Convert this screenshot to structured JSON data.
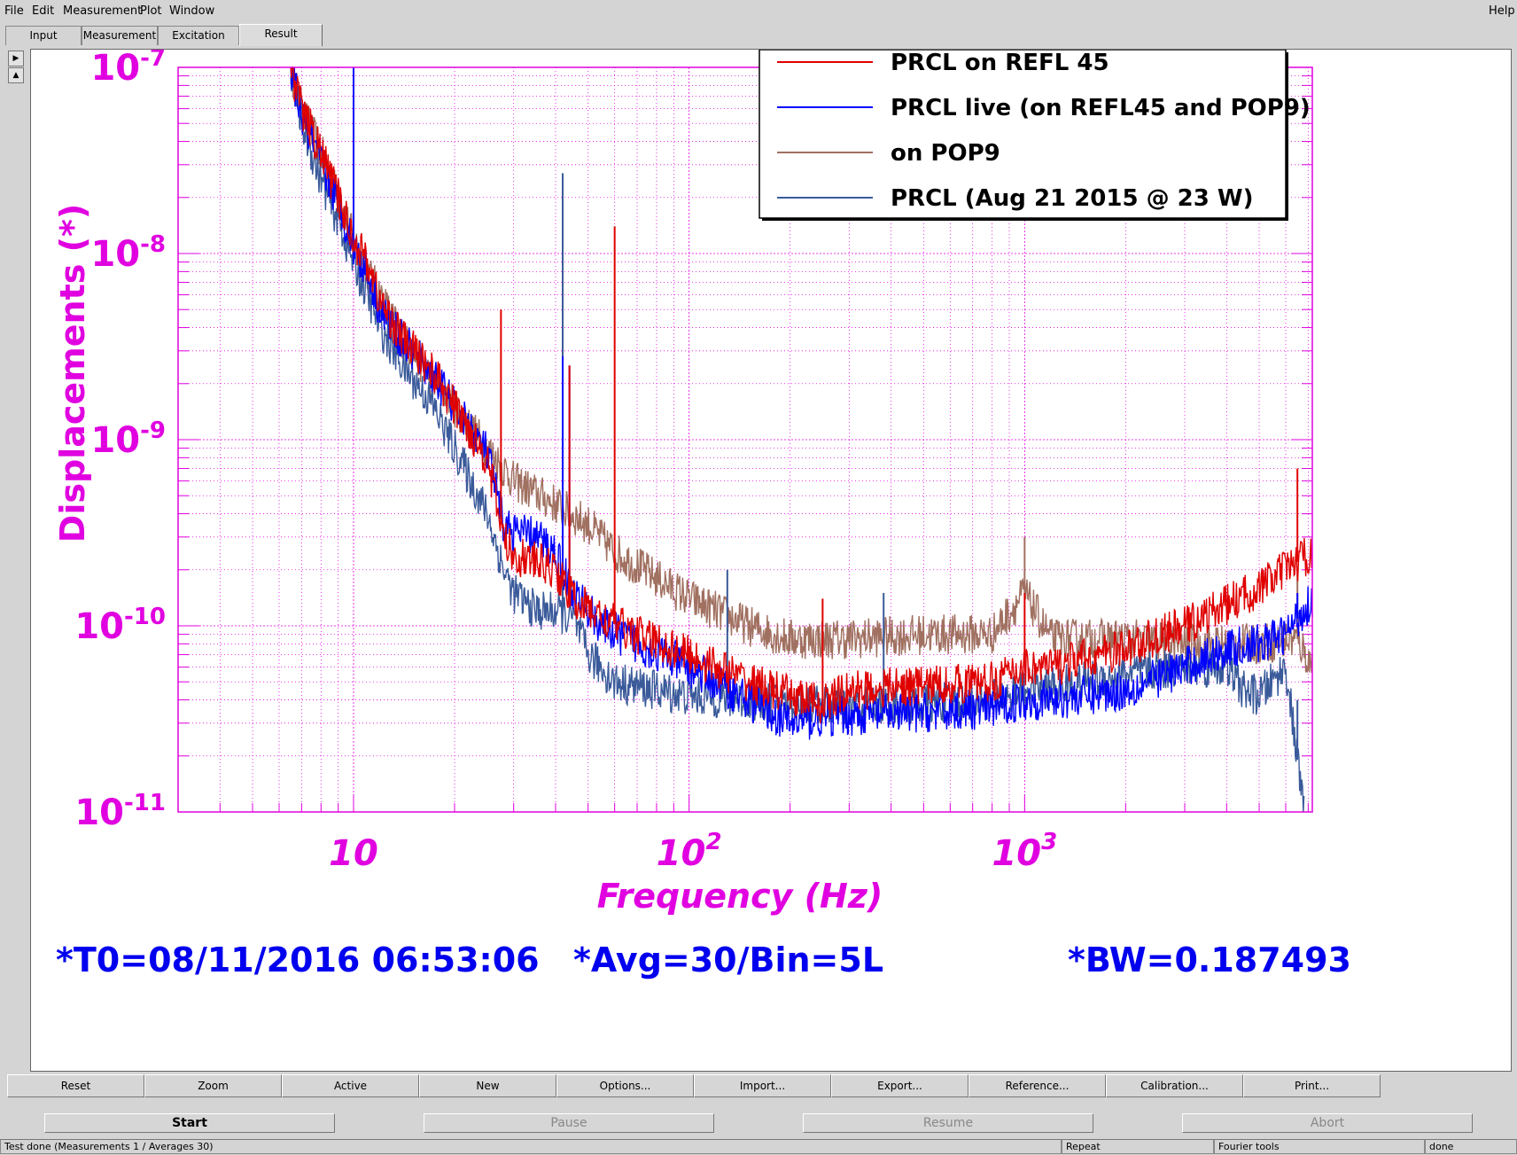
{
  "menu": {
    "file": "File",
    "edit": "Edit",
    "measurement": "Measurement",
    "plot": "Plot",
    "window": "Window",
    "help": "Help"
  },
  "tabs": [
    "Input",
    "Measurement",
    "Excitation",
    "Result"
  ],
  "active_tab": "Result",
  "icons": {
    "scroll_up": "triangle-right-icon",
    "scroll_down": "triangle-up-icon"
  },
  "colors": {
    "magenta": "#e000e0",
    "blue_text": "#0000ee",
    "red": "#e00000",
    "blue": "#0000ff",
    "brown": "#a07060",
    "slate": "#3a5a9a"
  },
  "plot_info": {
    "t0": "*T0=08/11/2016 06:53:06",
    "avg": "*Avg=30/Bin=5L",
    "bw": "*BW=0.187493"
  },
  "chart_data": {
    "type": "line",
    "xlabel": "Frequency (Hz)",
    "ylabel": "Displacements (*)",
    "xscale": "log",
    "yscale": "log",
    "xlim": [
      3,
      7200
    ],
    "ylim": [
      1e-11,
      1e-07
    ],
    "x_tick_labels": [
      "10",
      "10^2",
      "10^3"
    ],
    "y_tick_labels": [
      "10^-7",
      "10^-8",
      "10^-9",
      "10^-10",
      "10^-11"
    ],
    "grid": true,
    "legend_position": "top-right",
    "series": [
      {
        "name": "PRCL on REFL 45",
        "color": "#e00000",
        "points": [
          [
            6.5,
            1e-07
          ],
          [
            7,
            6e-08
          ],
          [
            8,
            3.5e-08
          ],
          [
            9,
            2e-08
          ],
          [
            10,
            1.2e-08
          ],
          [
            11,
            9e-09
          ],
          [
            12,
            5.5e-09
          ],
          [
            14,
            3.5e-09
          ],
          [
            17,
            2.4e-09
          ],
          [
            20,
            1.5e-09
          ],
          [
            25,
            8e-10
          ],
          [
            28,
            3e-10
          ],
          [
            30,
            2.4e-10
          ],
          [
            35,
            2.2e-10
          ],
          [
            40,
            2e-10
          ],
          [
            45,
            1.4e-10
          ],
          [
            55,
            1.1e-10
          ],
          [
            70,
            9e-11
          ],
          [
            100,
            7e-11
          ],
          [
            150,
            5e-11
          ],
          [
            200,
            4.2e-11
          ],
          [
            250,
            3.8e-11
          ],
          [
            300,
            4.5e-11
          ],
          [
            500,
            4.8e-11
          ],
          [
            800,
            5e-11
          ],
          [
            1000,
            6e-11
          ],
          [
            1200,
            6e-11
          ],
          [
            2000,
            7.5e-11
          ],
          [
            3000,
            1e-10
          ],
          [
            4000,
            1.3e-10
          ],
          [
            5000,
            1.6e-10
          ],
          [
            6000,
            2e-10
          ],
          [
            7200,
            2.5e-10
          ]
        ],
        "peaks": [
          [
            27.5,
            5e-09
          ],
          [
            44,
            2.5e-09
          ],
          [
            60,
            1.4e-08
          ],
          [
            250,
            1.4e-10
          ],
          [
            1000,
            1.5e-10
          ],
          [
            6500,
            7e-10
          ]
        ]
      },
      {
        "name": "PRCL live (on REFL45 and POP9)",
        "color": "#0000ff",
        "points": [
          [
            6.5,
            1e-07
          ],
          [
            7,
            5.5e-08
          ],
          [
            8,
            3e-08
          ],
          [
            9,
            1.9e-08
          ],
          [
            10,
            1.1e-08
          ],
          [
            11,
            8e-09
          ],
          [
            12,
            5e-09
          ],
          [
            14,
            3.4e-09
          ],
          [
            17,
            2.3e-09
          ],
          [
            20,
            1.5e-09
          ],
          [
            25,
            8.5e-10
          ],
          [
            28,
            3.5e-10
          ],
          [
            30,
            3.2e-10
          ],
          [
            35,
            3e-10
          ],
          [
            40,
            2.5e-10
          ],
          [
            45,
            1.5e-10
          ],
          [
            55,
            1e-10
          ],
          [
            70,
            8e-11
          ],
          [
            100,
            6e-11
          ],
          [
            150,
            4e-11
          ],
          [
            200,
            3e-11
          ],
          [
            250,
            3.2e-11
          ],
          [
            300,
            3.3e-11
          ],
          [
            500,
            3.4e-11
          ],
          [
            800,
            3.6e-11
          ],
          [
            1000,
            4e-11
          ],
          [
            1200,
            4e-11
          ],
          [
            2000,
            4.5e-11
          ],
          [
            3000,
            6e-11
          ],
          [
            4000,
            7.5e-11
          ],
          [
            5000,
            8e-11
          ],
          [
            6000,
            9e-11
          ],
          [
            7200,
            1.4e-10
          ]
        ],
        "peaks": [
          [
            10,
            1e-07
          ],
          [
            42,
            2.8e-09
          ],
          [
            44,
            2.5e-09
          ],
          [
            6500,
            1.5e-10
          ]
        ]
      },
      {
        "name": "on POP9",
        "color": "#a07060",
        "points": [
          [
            6.5,
            1e-07
          ],
          [
            7,
            6e-08
          ],
          [
            8,
            3.5e-08
          ],
          [
            9,
            2e-08
          ],
          [
            10,
            1.2e-08
          ],
          [
            11,
            8e-09
          ],
          [
            12,
            6e-09
          ],
          [
            14,
            3.5e-09
          ],
          [
            17,
            2.2e-09
          ],
          [
            20,
            1.5e-09
          ],
          [
            25,
            9e-10
          ],
          [
            30,
            6e-10
          ],
          [
            40,
            4.5e-10
          ],
          [
            50,
            3.5e-10
          ],
          [
            60,
            2.5e-10
          ],
          [
            80,
            1.8e-10
          ],
          [
            100,
            1.4e-10
          ],
          [
            150,
            1e-10
          ],
          [
            200,
            8.5e-11
          ],
          [
            300,
            8.5e-11
          ],
          [
            500,
            9e-11
          ],
          [
            800,
            9e-11
          ],
          [
            1000,
            1.5e-10
          ],
          [
            1200,
            8.5e-11
          ],
          [
            2000,
            8.5e-11
          ],
          [
            3000,
            8e-11
          ],
          [
            5000,
            8e-11
          ],
          [
            6500,
            8.5e-11
          ],
          [
            7200,
            6e-11
          ]
        ],
        "peaks": [
          [
            1000,
            3e-10
          ],
          [
            6500,
            2e-10
          ]
        ]
      },
      {
        "name": "PRCL (Aug 21 2015 @ 23 W)",
        "color": "#3a5a9a",
        "points": [
          [
            6.5,
            1e-07
          ],
          [
            7,
            5e-08
          ],
          [
            8,
            2.5e-08
          ],
          [
            9,
            1.5e-08
          ],
          [
            10,
            9e-09
          ],
          [
            11,
            6e-09
          ],
          [
            12,
            4e-09
          ],
          [
            14,
            2.5e-09
          ],
          [
            17,
            1.6e-09
          ],
          [
            20,
            9e-10
          ],
          [
            25,
            4e-10
          ],
          [
            28,
            2e-10
          ],
          [
            30,
            1.5e-10
          ],
          [
            35,
            1.2e-10
          ],
          [
            40,
            1.2e-10
          ],
          [
            45,
            1.1e-10
          ],
          [
            50,
            7e-11
          ],
          [
            60,
            5e-11
          ],
          [
            80,
            4.5e-11
          ],
          [
            100,
            4.2e-11
          ],
          [
            150,
            4e-11
          ],
          [
            200,
            3.8e-11
          ],
          [
            300,
            3.7e-11
          ],
          [
            500,
            3.8e-11
          ],
          [
            800,
            4e-11
          ],
          [
            1000,
            4.5e-11
          ],
          [
            1500,
            5e-11
          ],
          [
            2000,
            5.5e-11
          ],
          [
            3000,
            6e-11
          ],
          [
            4000,
            6e-11
          ],
          [
            4500,
            4.5e-11
          ],
          [
            5000,
            4.2e-11
          ],
          [
            6000,
            6e-11
          ],
          [
            6800,
            1e-11
          ]
        ],
        "peaks": [
          [
            42,
            2.7e-08
          ],
          [
            130,
            2e-10
          ],
          [
            380,
            1.5e-10
          ],
          [
            6500,
            4e-11
          ]
        ]
      }
    ]
  },
  "toolbar": [
    "Reset",
    "Zoom",
    "Active",
    "New",
    "Options...",
    "Import...",
    "Export...",
    "Reference...",
    "Calibration...",
    "Print..."
  ],
  "run_buttons": {
    "start": "Start",
    "pause": "Pause",
    "resume": "Resume",
    "abort": "Abort"
  },
  "status": {
    "message": "Test done (Measurements 1 / Averages 30)",
    "mode": "Repeat",
    "tool": "Fourier tools",
    "state": "done"
  }
}
